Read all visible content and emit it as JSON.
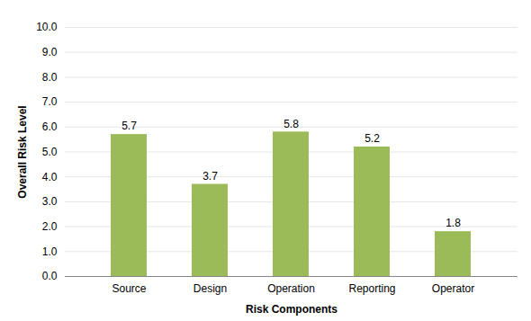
{
  "chart_data": {
    "type": "bar",
    "x_label": "Risk Components",
    "y_label": "Overall Risk Level",
    "categories": [
      "Source",
      "Design",
      "Operation",
      "Reporting",
      "Operator"
    ],
    "values": [
      5.7,
      3.7,
      5.8,
      5.2,
      1.8
    ],
    "color": "#9bbb59",
    "ylim": [
      0,
      10
    ],
    "yticks": [
      {
        "value": 0,
        "label": "0.0"
      },
      {
        "value": 1,
        "label": "1.0"
      },
      {
        "value": 2,
        "label": "2.0"
      },
      {
        "value": 3,
        "label": "3.0"
      },
      {
        "value": 4,
        "label": "4.0"
      },
      {
        "value": 5,
        "label": "5.0"
      },
      {
        "value": 6,
        "label": "6.0"
      },
      {
        "value": 7,
        "label": "7.0"
      },
      {
        "value": 8,
        "label": "8.0"
      },
      {
        "value": 9,
        "label": "9.0"
      },
      {
        "value": 10,
        "label": "10.0"
      }
    ],
    "grid": true,
    "data_labels": true
  }
}
